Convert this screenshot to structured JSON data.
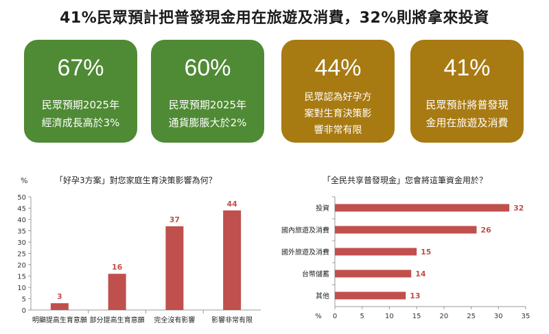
{
  "headline": "41%民眾預計把普發現金用在旅遊及消費，32%則將拿來投資",
  "cards": [
    {
      "value": "67%",
      "lines": [
        "民眾預期2025年",
        "經濟成長高於3%"
      ],
      "color": "#4f8a35"
    },
    {
      "value": "60%",
      "lines": [
        "民眾預期2025年",
        "通貨膨脹大於2%"
      ],
      "color": "#4f8a35"
    },
    {
      "value": "44%",
      "lines": [
        "民眾認為好孕方",
        "案對生育決策影",
        "響非常有限"
      ],
      "color": "#a87a12"
    },
    {
      "value": "41%",
      "lines": [
        "民眾預計將普發現",
        "金用在旅遊及消費"
      ],
      "color": "#a87a12"
    }
  ],
  "chart_data": [
    {
      "type": "bar",
      "title": "「好孕3方案」對您家庭生育決策影響為何？",
      "ylabel": "%",
      "categories": [
        "明顯提高生育意願",
        "部分提高生育意願",
        "完全沒有影響",
        "影響非常有限"
      ],
      "values": [
        3,
        16,
        37,
        44
      ],
      "ylim": [
        0,
        50
      ],
      "yticks": [
        0,
        5,
        10,
        15,
        20,
        25,
        30,
        35,
        40,
        45,
        50
      ],
      "bar_color": "#c0504d",
      "label_color": "#c0504d"
    },
    {
      "type": "bar",
      "orientation": "horizontal",
      "title": "「全民共享普發現金」您會將這筆資金用於？",
      "xlabel": "%",
      "categories": [
        "投資",
        "國內旅遊及消費",
        "國外旅遊及消費",
        "台幣儲蓄",
        "其他"
      ],
      "values": [
        32,
        26,
        15,
        14,
        13
      ],
      "xlim": [
        0,
        35
      ],
      "xticks": [
        0,
        5,
        10,
        15,
        20,
        25,
        30,
        35
      ],
      "bar_color": "#c0504d",
      "label_color": "#c0504d"
    }
  ]
}
